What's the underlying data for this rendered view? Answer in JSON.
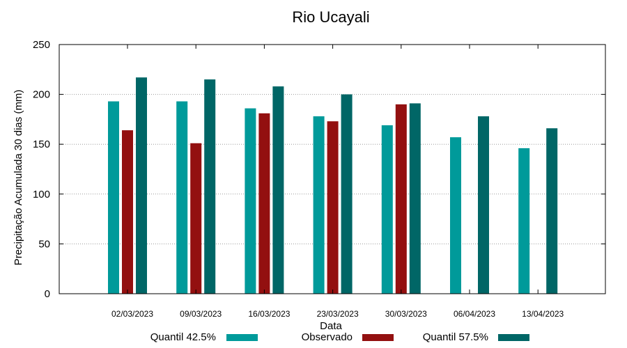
{
  "chart_data": {
    "type": "bar",
    "title": "Rio Ucayali",
    "xlabel": "Data",
    "ylabel": "Precipitação Acumulada 30 dias (mm)",
    "ylim": [
      0,
      250
    ],
    "yticks": [
      0,
      50,
      100,
      150,
      200,
      250
    ],
    "grid": true,
    "legend_position": "bottom",
    "categories": [
      "02/03/2023",
      "09/03/2023",
      "16/03/2023",
      "23/03/2023",
      "30/03/2023",
      "06/04/2023",
      "13/04/2023"
    ],
    "series": [
      {
        "name": "Quantil 42.5%",
        "color": "#009a9a",
        "values": [
          193,
          193,
          186,
          178,
          169,
          157,
          146
        ]
      },
      {
        "name": "Observado",
        "color": "#931010",
        "values": [
          164,
          151,
          181,
          173,
          190,
          null,
          null
        ]
      },
      {
        "name": "Quantil 57.5%",
        "color": "#006666",
        "values": [
          217,
          215,
          208,
          200,
          191,
          178,
          166
        ]
      }
    ]
  }
}
